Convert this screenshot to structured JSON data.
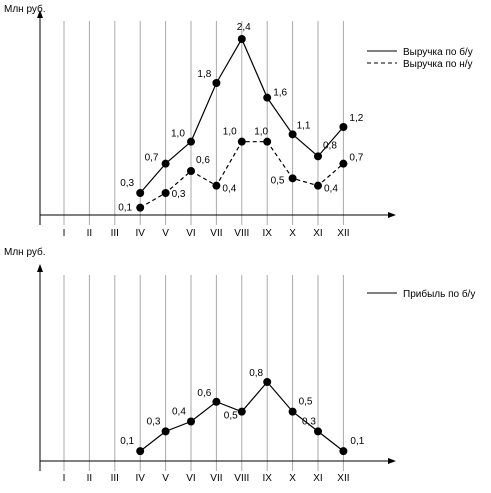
{
  "chart_data": [
    {
      "type": "line",
      "ylabel": "Млн руб.",
      "xlabel": "",
      "categories": [
        "I",
        "II",
        "III",
        "IV",
        "V",
        "VI",
        "VII",
        "VIII",
        "IX",
        "X",
        "XI",
        "XII"
      ],
      "ylim": [
        0,
        2.6
      ],
      "grid": "vertical",
      "legend_position": "top-right",
      "series": [
        {
          "name": "Выручка по б/у",
          "style": "solid",
          "values": [
            null,
            null,
            null,
            0.3,
            0.7,
            1.0,
            1.8,
            2.4,
            1.6,
            1.1,
            0.8,
            1.2
          ],
          "labels": [
            "",
            "",
            "",
            "0,3",
            "0,7",
            "1,0",
            "1,8",
            "2,4",
            "1,6",
            "1,1",
            "0,8",
            "1,2"
          ]
        },
        {
          "name": "Выручка по н/у",
          "style": "dashed",
          "values": [
            null,
            null,
            null,
            0.1,
            0.3,
            0.6,
            0.4,
            1.0,
            1.0,
            0.5,
            0.4,
            0.7
          ],
          "labels": [
            "",
            "",
            "",
            "0,1",
            "0,3",
            "0,6",
            "0,4",
            "1,0",
            "1,0",
            "0,5",
            "0,4",
            "0,7"
          ]
        }
      ]
    },
    {
      "type": "line",
      "ylabel": "Млн руб.",
      "xlabel": "",
      "categories": [
        "I",
        "II",
        "III",
        "IV",
        "V",
        "VI",
        "VII",
        "VIII",
        "IX",
        "X",
        "XI",
        "XII"
      ],
      "ylim": [
        0,
        1.0
      ],
      "grid": "vertical",
      "legend_position": "top-right",
      "series": [
        {
          "name": "Прибыль по б/у",
          "style": "solid",
          "values": [
            null,
            null,
            null,
            0.1,
            0.3,
            0.4,
            0.6,
            0.5,
            0.8,
            0.5,
            0.3,
            0.1
          ],
          "labels": [
            "",
            "",
            "",
            "0,1",
            "0,3",
            "0,4",
            "0,6",
            "0,5",
            "0,8",
            "0,5",
            "0,3",
            "0,1"
          ]
        }
      ]
    }
  ],
  "colors": {
    "line": "#000000",
    "grid": "#aaaaaa",
    "background": "#ffffff"
  }
}
